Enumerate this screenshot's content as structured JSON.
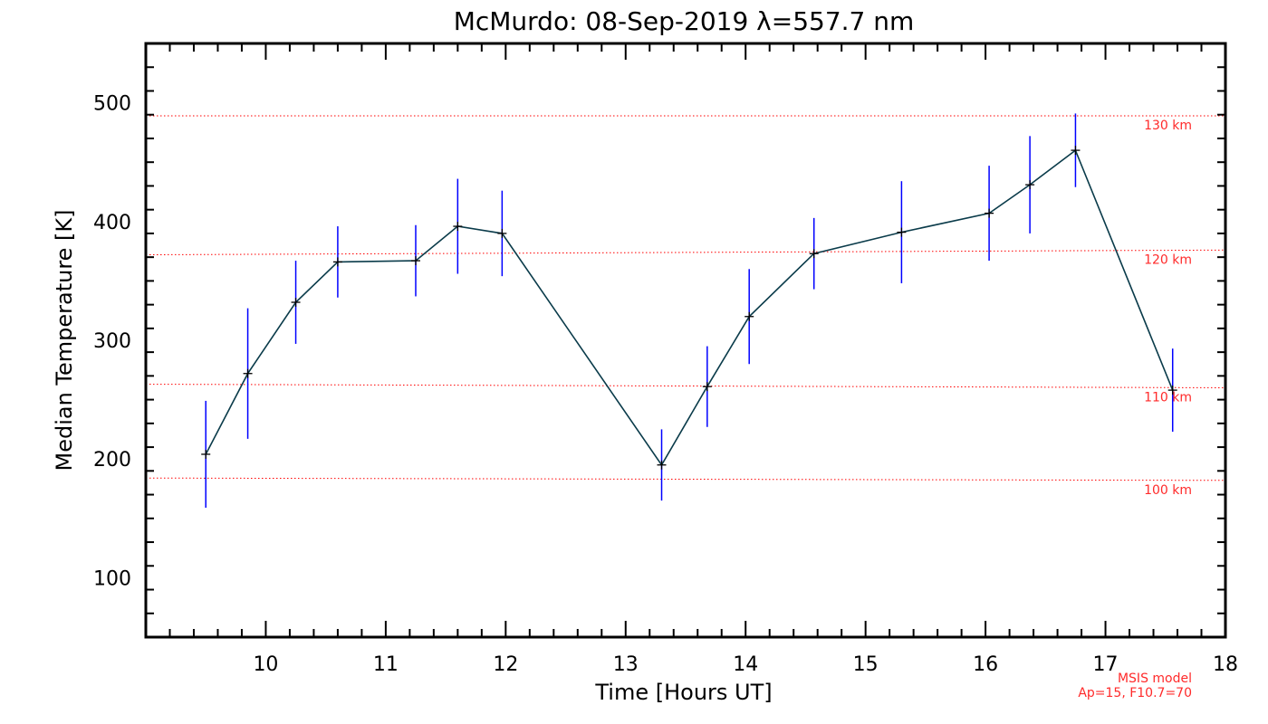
{
  "chart_data": {
    "type": "line",
    "title": "McMurdo: 08-Sep-2019 λ=557.7 nm",
    "xlabel": "Time [Hours UT]",
    "ylabel": "Median Temperature [K]",
    "xlim": [
      9.0,
      18.0
    ],
    "ylim": [
      50,
      550
    ],
    "x_ticks": [
      10,
      11,
      12,
      13,
      14,
      15,
      16,
      17,
      18
    ],
    "y_ticks": [
      100,
      200,
      300,
      400,
      500
    ],
    "series": [
      {
        "name": "Median Temperature",
        "color": "#0a3b4a",
        "errorbar_color": "#0000ff",
        "points": [
          {
            "x": 9.5,
            "y": 204,
            "err": 45
          },
          {
            "x": 9.85,
            "y": 272,
            "err": 55
          },
          {
            "x": 10.25,
            "y": 332,
            "err": 35
          },
          {
            "x": 10.6,
            "y": 366,
            "err": 30
          },
          {
            "x": 11.25,
            "y": 367,
            "err": 30
          },
          {
            "x": 11.6,
            "y": 396,
            "err": 40
          },
          {
            "x": 11.97,
            "y": 390,
            "err": 36
          },
          {
            "x": 13.3,
            "y": 195,
            "err": 30
          },
          {
            "x": 13.68,
            "y": 261,
            "err": 34
          },
          {
            "x": 14.03,
            "y": 320,
            "err": 40
          },
          {
            "x": 14.57,
            "y": 373,
            "err": 30
          },
          {
            "x": 15.3,
            "y": 391,
            "err": 43
          },
          {
            "x": 16.03,
            "y": 407,
            "err": 40
          },
          {
            "x": 16.37,
            "y": 431,
            "err": 41
          },
          {
            "x": 16.75,
            "y": 460,
            "err": 31
          },
          {
            "x": 17.56,
            "y": 258,
            "err": 35
          }
        ]
      }
    ],
    "reference_lines": [
      {
        "label": "130 km",
        "y_start": 489,
        "y_end": 489,
        "color": "#ff0000"
      },
      {
        "label": "120 km",
        "y_start": 372,
        "y_end": 376,
        "color": "#ff0000"
      },
      {
        "label": "110 km",
        "y_start": 263,
        "y_end": 260,
        "color": "#ff0000"
      },
      {
        "label": "100 km",
        "y_start": 184,
        "y_end": 182,
        "color": "#ff0000"
      }
    ],
    "model_note": [
      "MSIS model",
      "Ap=15, F10.7=70"
    ],
    "grid": false
  }
}
